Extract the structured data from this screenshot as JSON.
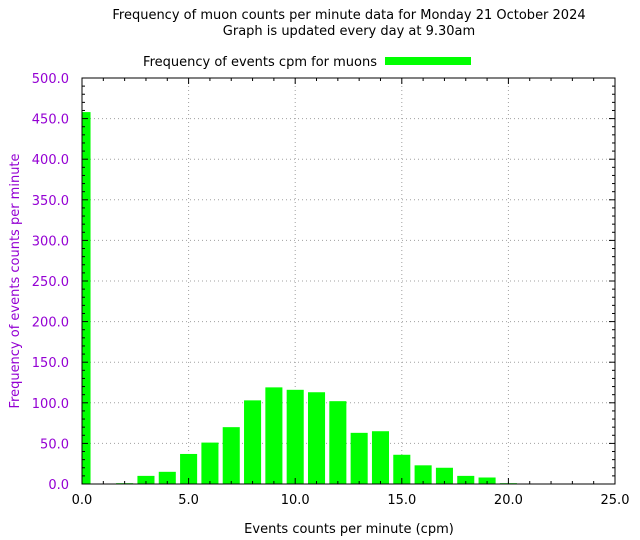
{
  "chart_data": {
    "type": "bar",
    "title": "Frequency of muon counts per minute data for Monday 21 October 2024",
    "subtitle": "Graph is updated every day at 9.30am",
    "xlabel": "Events counts per minute (cpm)",
    "ylabel": "Frequency of events counts per minute",
    "xlim": [
      0,
      25
    ],
    "ylim": [
      0,
      500
    ],
    "xticks": [
      "0.0",
      "5.0",
      "10.0",
      "15.0",
      "20.0",
      "25.0"
    ],
    "yticks": [
      "0.0",
      "50.0",
      "100.0",
      "150.0",
      "200.0",
      "250.0",
      "300.0",
      "350.0",
      "400.0",
      "450.0",
      "500.0"
    ],
    "grid": true,
    "legend_position": "top",
    "series": [
      {
        "name": "Frequency of events cpm for muons",
        "color": "#00ff00",
        "x": [
          0,
          1,
          2,
          3,
          4,
          5,
          6,
          7,
          8,
          9,
          10,
          11,
          12,
          13,
          14,
          15,
          16,
          17,
          18,
          19,
          20,
          21,
          22,
          23,
          24
        ],
        "values": [
          458,
          0,
          1,
          10,
          15,
          37,
          51,
          70,
          103,
          119,
          116,
          113,
          102,
          63,
          65,
          36,
          23,
          20,
          10,
          8,
          1,
          0,
          0,
          0,
          0
        ]
      }
    ]
  }
}
